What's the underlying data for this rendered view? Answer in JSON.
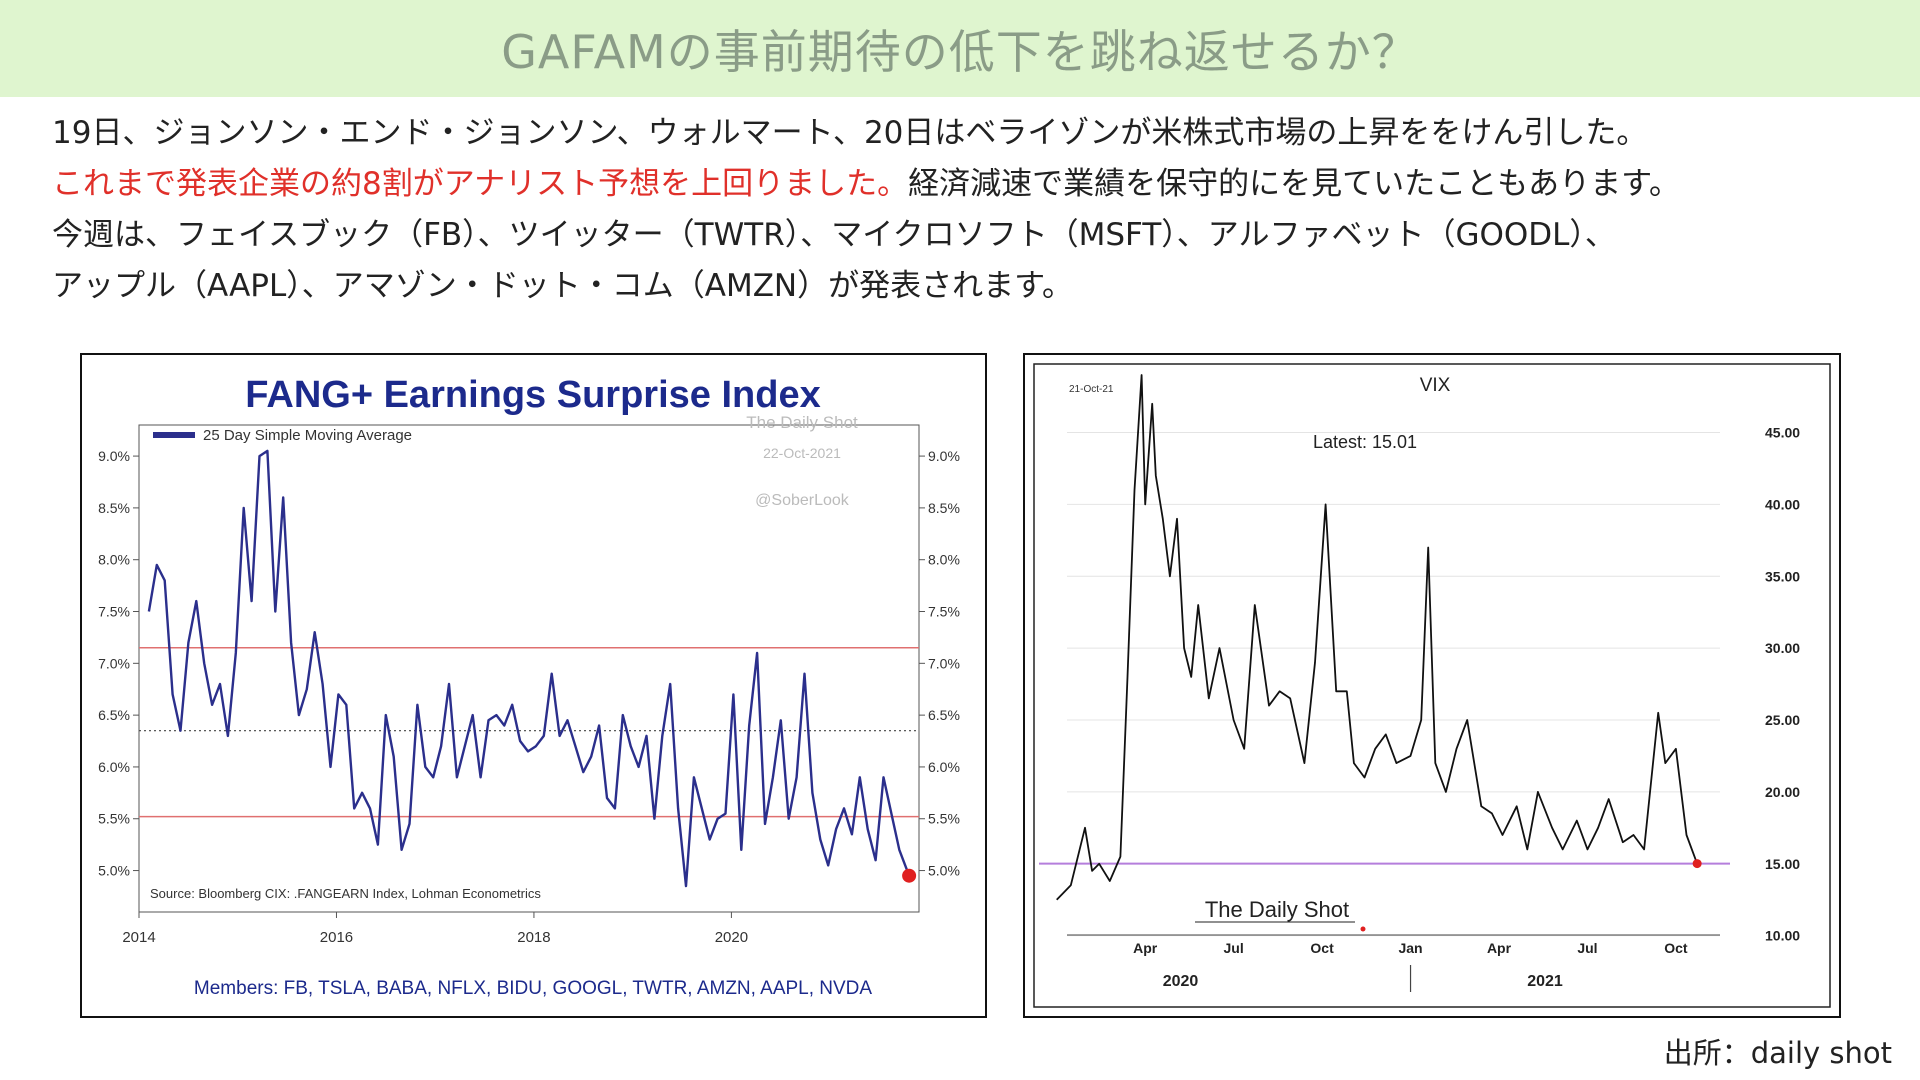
{
  "header": {
    "title": "GAFAMの事前期待の低下を跳ね返せるか？"
  },
  "body": {
    "line1": "19日、ジョンソン・エンド・ジョンソン、ウォルマート、20日はベライゾンが米株式市場の上昇ををけん引した。",
    "line2_highlight": "これまで発表企業の約8割がアナリスト予想を上回りました。",
    "line2_rest": "経済減速で業績を保守的にを見ていたこともあります。",
    "line3": "今週は、フェイスブック（FB）、ツイッター（TWTR）、マイクロソフト（MSFT）、アルファベット（GOODL）、",
    "line4": "アップル（AAPL）、アマゾン・ドット・コム（AMZN）が発表されます。"
  },
  "footer": {
    "source": "出所：daily shot"
  },
  "colors": {
    "banner": "#dff5cf",
    "highlight": "#e0302a",
    "fang_line": "#2b2f8c",
    "vix_baseline": "#b57edc",
    "band": "#e07070"
  },
  "chart_data": [
    {
      "type": "line",
      "title": "FANG+ Earnings Surprise Index",
      "legend": "25 Day Simple Moving Average",
      "legend_position": "top-left",
      "watermark": [
        "The Daily Shot",
        "22-Oct-2021",
        "@SoberLook"
      ],
      "source": "Source: Bloomberg CIX: .FANGEARN Index, Lohman Econometrics",
      "members": "Members: FB, TSLA, BABA, NFLX, BIDU, GOOGL, TWTR, AMZN, AAPL, NVDA",
      "x_ticks": [
        "2014",
        "2016",
        "2018",
        "2020"
      ],
      "y_ticks": [
        "9.0%",
        "8.5%",
        "8.0%",
        "7.5%",
        "7.0%",
        "6.5%",
        "6.0%",
        "5.5%",
        "5.0%"
      ],
      "ylim": [
        4.6,
        9.3
      ],
      "xlim": [
        2014.0,
        2021.9
      ],
      "reference_lines": {
        "upper": 7.15,
        "mean": 6.35,
        "lower": 5.52
      },
      "latest_marker": {
        "x": 2021.8,
        "y": 4.95
      },
      "series": [
        {
          "x": [
            2014.1,
            2014.18,
            2014.26,
            2014.34,
            2014.42,
            2014.5,
            2014.58,
            2014.66,
            2014.74,
            2014.82,
            2014.9,
            2014.98,
            2015.06,
            2015.14,
            2015.22,
            2015.3,
            2015.38,
            2015.46,
            2015.54,
            2015.62,
            2015.7,
            2015.78,
            2015.86,
            2015.94,
            2016.02,
            2016.1,
            2016.18,
            2016.26,
            2016.34,
            2016.42,
            2016.5,
            2016.58,
            2016.66,
            2016.74,
            2016.82,
            2016.9,
            2016.98,
            2017.06,
            2017.14,
            2017.22,
            2017.3,
            2017.38,
            2017.46,
            2017.54,
            2017.62,
            2017.7,
            2017.78,
            2017.86,
            2017.94,
            2018.02,
            2018.1,
            2018.18,
            2018.26,
            2018.34,
            2018.42,
            2018.5,
            2018.58,
            2018.66,
            2018.74,
            2018.82,
            2018.9,
            2018.98,
            2019.06,
            2019.14,
            2019.22,
            2019.3,
            2019.38,
            2019.46,
            2019.54,
            2019.62,
            2019.7,
            2019.78,
            2019.86,
            2019.94,
            2020.02,
            2020.1,
            2020.18,
            2020.26,
            2020.34,
            2020.42,
            2020.5,
            2020.58,
            2020.66,
            2020.74,
            2020.82,
            2020.9,
            2020.98,
            2021.06,
            2021.14,
            2021.22,
            2021.3,
            2021.38,
            2021.46,
            2021.54,
            2021.62,
            2021.7,
            2021.8
          ],
          "values": [
            7.5,
            7.95,
            7.8,
            6.7,
            6.35,
            7.2,
            7.6,
            7.0,
            6.6,
            6.8,
            6.3,
            7.1,
            8.5,
            7.6,
            9.0,
            9.05,
            7.5,
            8.6,
            7.2,
            6.5,
            6.75,
            7.3,
            6.8,
            6.0,
            6.7,
            6.6,
            5.6,
            5.75,
            5.6,
            5.25,
            6.5,
            6.1,
            5.2,
            5.45,
            6.6,
            6.0,
            5.9,
            6.2,
            6.8,
            5.9,
            6.2,
            6.5,
            5.9,
            6.45,
            6.5,
            6.4,
            6.6,
            6.25,
            6.15,
            6.2,
            6.3,
            6.9,
            6.3,
            6.45,
            6.2,
            5.95,
            6.1,
            6.4,
            5.7,
            5.6,
            6.5,
            6.2,
            6.0,
            6.3,
            5.5,
            6.3,
            6.8,
            5.6,
            4.85,
            5.9,
            5.6,
            5.3,
            5.5,
            5.55,
            6.7,
            5.2,
            6.4,
            7.1,
            5.45,
            5.9,
            6.45,
            5.5,
            5.9,
            6.9,
            5.75,
            5.3,
            5.05,
            5.4,
            5.6,
            5.35,
            5.9,
            5.4,
            5.1,
            5.9,
            5.55,
            5.2,
            4.95
          ]
        }
      ]
    },
    {
      "type": "line",
      "title": "VIX",
      "date_label": "21-Oct-21",
      "latest_label": "Latest:  15.01",
      "watermark": "The Daily Shot",
      "x_ticks": [
        "Apr",
        "Jul",
        "Oct",
        "Jan",
        "Apr",
        "Jul",
        "Oct"
      ],
      "year_labels": [
        "2020",
        "2021"
      ],
      "y_ticks": [
        "45.00",
        "40.00",
        "35.00",
        "30.00",
        "25.00",
        "20.00",
        "15.00",
        "10.00"
      ],
      "ylim": [
        9,
        49
      ],
      "xlim": [
        2019.95,
        2021.9
      ],
      "baseline": 15.01,
      "latest_marker": {
        "x": 2021.81,
        "y": 15.01
      },
      "series": [
        {
          "x": [
            2020.0,
            2020.04,
            2020.08,
            2020.1,
            2020.12,
            2020.15,
            2020.18,
            2020.2,
            2020.22,
            2020.24,
            2020.25,
            2020.27,
            2020.28,
            2020.3,
            2020.32,
            2020.34,
            2020.36,
            2020.38,
            2020.4,
            2020.43,
            2020.46,
            2020.5,
            2020.53,
            2020.56,
            2020.6,
            2020.63,
            2020.66,
            2020.7,
            2020.73,
            2020.76,
            2020.79,
            2020.82,
            2020.84,
            2020.87,
            2020.9,
            2020.93,
            2020.96,
            2021.0,
            2021.03,
            2021.05,
            2021.07,
            2021.1,
            2021.13,
            2021.16,
            2021.2,
            2021.23,
            2021.26,
            2021.3,
            2021.33,
            2021.36,
            2021.4,
            2021.43,
            2021.47,
            2021.5,
            2021.53,
            2021.56,
            2021.6,
            2021.63,
            2021.66,
            2021.7,
            2021.72,
            2021.75,
            2021.78,
            2021.81
          ],
          "values": [
            12.5,
            13.5,
            17.5,
            14.5,
            15.0,
            13.8,
            15.5,
            28.0,
            41.0,
            49.0,
            40.0,
            47.0,
            42.0,
            39.0,
            35.0,
            39.0,
            30.0,
            28.0,
            33.0,
            26.5,
            30.0,
            25.0,
            23.0,
            33.0,
            26.0,
            27.0,
            26.5,
            22.0,
            29.0,
            40.0,
            27.0,
            27.0,
            22.0,
            21.0,
            23.0,
            24.0,
            22.0,
            22.5,
            25.0,
            37.0,
            22.0,
            20.0,
            23.0,
            25.0,
            19.0,
            18.5,
            17.0,
            19.0,
            16.0,
            20.0,
            17.5,
            16.0,
            18.0,
            16.0,
            17.5,
            19.5,
            16.5,
            17.0,
            16.0,
            25.5,
            22.0,
            23.0,
            17.0,
            15.0
          ]
        }
      ]
    }
  ]
}
